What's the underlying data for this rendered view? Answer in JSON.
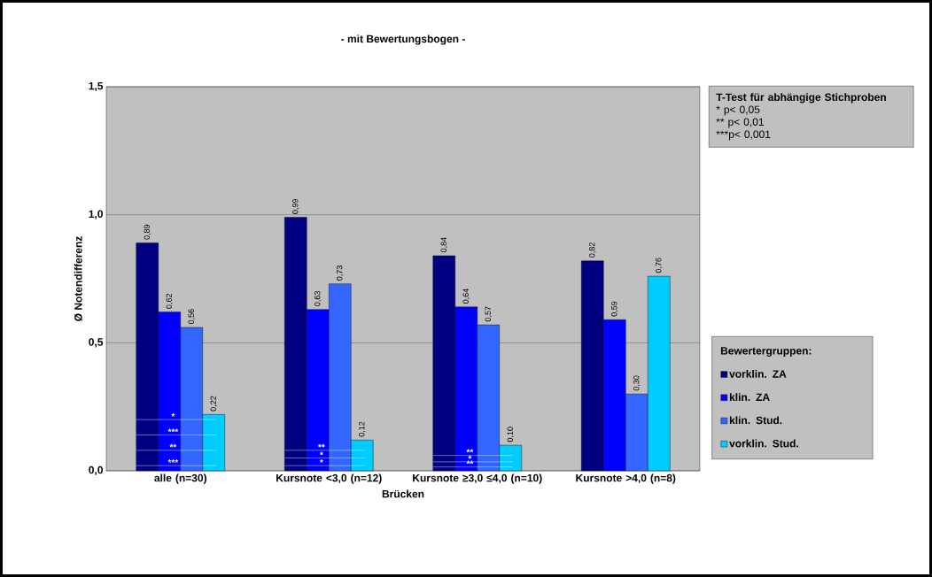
{
  "chart_data": {
    "type": "bar",
    "title": "- mit Bewertungsbogen -",
    "xlabel": "Brücken",
    "ylabel": "Ø Notendifferenz",
    "categories": [
      "alle (n=30)",
      "Kursnote <3,0 (n=12)",
      "Kursnote ≥3,0 ≤4,0 (n=10)",
      "Kursnote >4,0 (n=8)"
    ],
    "series": [
      {
        "name": "vorklin. ZA",
        "color": "#000080",
        "values": [
          0.89,
          0.99,
          0.84,
          0.82
        ],
        "value_labels": [
          "0,89",
          "0,99",
          "0,84",
          "0,82"
        ]
      },
      {
        "name": "klin. ZA",
        "color": "#0000ff",
        "values": [
          0.62,
          0.63,
          0.64,
          0.59
        ],
        "value_labels": [
          "0,62",
          "0,63",
          "0,64",
          "0,59"
        ]
      },
      {
        "name": "klin. Stud.",
        "color": "#3366ff",
        "values": [
          0.56,
          0.73,
          0.57,
          0.3
        ],
        "value_labels": [
          "0,56",
          "0,73",
          "0,57",
          "0,30"
        ]
      },
      {
        "name": "vorklin. Stud.",
        "color": "#00ccff",
        "values": [
          0.22,
          0.12,
          0.1,
          0.76
        ],
        "value_labels": [
          "0,22",
          "0,12",
          "0,10",
          "0,76"
        ]
      }
    ],
    "ylim": [
      0,
      1.5
    ],
    "yticks": [
      {
        "value": 0,
        "label": "0,0"
      },
      {
        "value": 0.5,
        "label": "0,5"
      },
      {
        "value": 1.0,
        "label": "1,0"
      },
      {
        "value": 1.5,
        "label": "1,5"
      }
    ],
    "grid": "y",
    "legend": "right",
    "legend_title": "Bewertergruppen:",
    "annotations": [
      "T-Test für abhängige Stichproben",
      "*   p< 0,05",
      "**  p< 0,01",
      "***p< 0,001",
      {
        "text": "*",
        "x": "alle (n=30)",
        "y": 0.2
      },
      {
        "text": "***",
        "x": "alle (n=30)",
        "y": 0.14
      },
      {
        "text": "**",
        "x": "alle (n=30)",
        "y": 0.08
      },
      {
        "text": "***",
        "x": "alle (n=30)",
        "y": 0.02
      },
      {
        "text": "**",
        "x": "Kursnote <3,0 (n=12)",
        "y": 0.08
      },
      {
        "text": "*",
        "x": "Kursnote <3,0 (n=12)",
        "y": 0.05
      },
      {
        "text": "*",
        "x": "Kursnote <3,0 (n=12)",
        "y": 0.02
      },
      {
        "text": "**",
        "x": "Kursnote ≥3,0 ≤4,0 (n=10)",
        "y": 0.06
      },
      {
        "text": "*",
        "x": "Kursnote ≥3,0 ≤4,0 (n=10)",
        "y": 0.035
      },
      {
        "text": "**",
        "x": "Kursnote ≥3,0 ≤4,0 (n=10)",
        "y": 0.015
      }
    ]
  }
}
